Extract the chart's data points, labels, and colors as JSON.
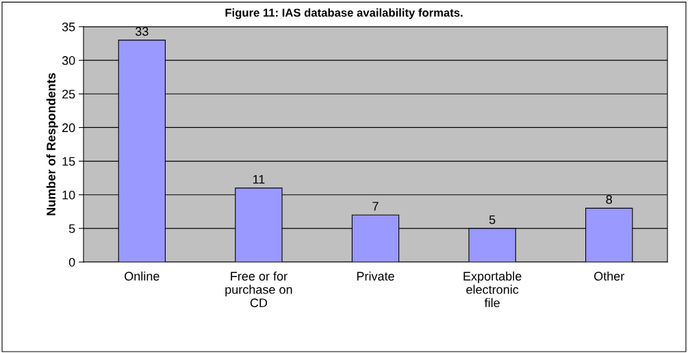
{
  "chart_data": {
    "type": "bar",
    "title": "Figure 11: IAS database availability formats.",
    "ylabel": "Number of Respondents",
    "categories": [
      "Online",
      "Free or for purchase on CD",
      "Private",
      "Exportable electronic file",
      "Other"
    ],
    "values": [
      33,
      11,
      7,
      5,
      8
    ],
    "color": "#9999ff",
    "ylim": [
      0,
      35
    ],
    "yticks": [
      0,
      5,
      10,
      15,
      20,
      25,
      30,
      35
    ],
    "grid": "y",
    "data_labels": true
  }
}
